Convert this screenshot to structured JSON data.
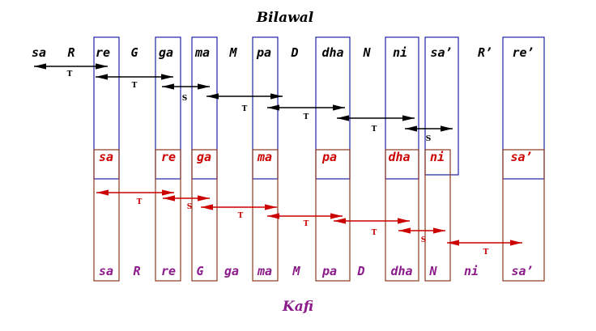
{
  "colors": {
    "top_box": "#2222aa",
    "bottom_box": "#8b3a1f",
    "top_text": "#000000",
    "mid_text": "#cc0000",
    "bottom_text": "#8b1a8b",
    "top_arrow": "#000000",
    "bottom_arrow": "#cc0000",
    "top_step": "#000000",
    "bottom_step": "#cc0000"
  },
  "top_title": "Bilawal",
  "bottom_title": "Kafi",
  "top_scale": [
    "sa",
    "R",
    "re",
    "G",
    "ga",
    "ma",
    "M",
    "pa",
    "D",
    "dha",
    "N",
    "ni",
    "sa’",
    "R’",
    "re’"
  ],
  "mid_scale": [
    "sa",
    "re",
    "ga",
    "ma",
    "pa",
    "dha",
    "ni",
    "sa’"
  ],
  "bottom_scale": [
    "sa",
    "R",
    "re",
    "G",
    "ga",
    "ma",
    "M",
    "pa",
    "D",
    "dha",
    "N",
    "ni",
    "sa’"
  ],
  "top_steps": [
    "T",
    "T",
    "S",
    "T",
    "T",
    "T",
    "S"
  ],
  "bottom_steps": [
    "T",
    "S",
    "T",
    "T",
    "T",
    "S",
    "T"
  ]
}
